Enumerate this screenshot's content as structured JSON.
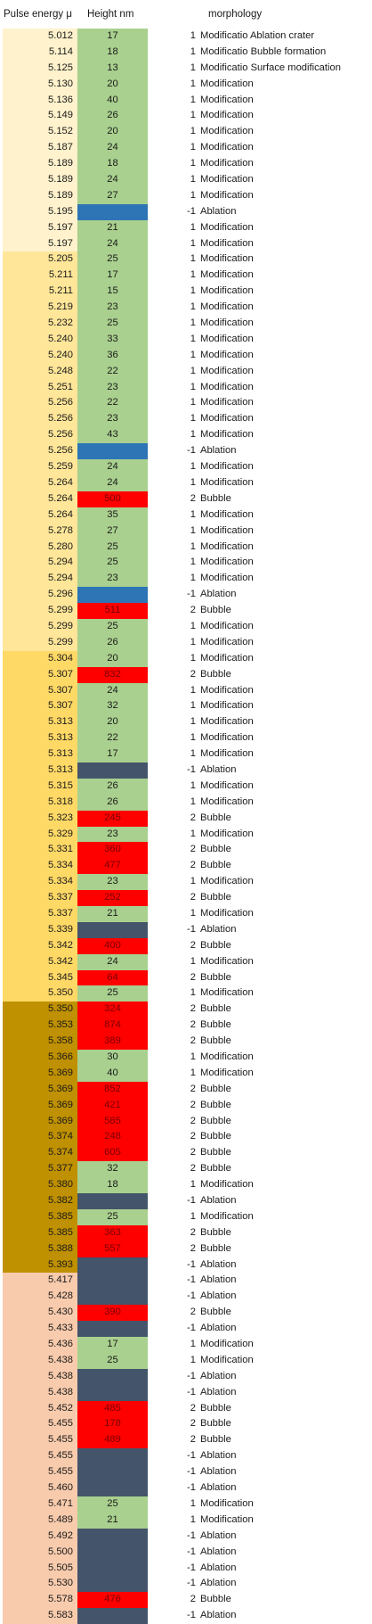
{
  "header": {
    "energy": "Pulse energy μ",
    "height": "Height nm",
    "morphology": "morphology"
  },
  "colors": {
    "energy_groups": [
      "#fff2cc",
      "#ffe699",
      "#ffd966",
      "#bf9000",
      "#f8cbad"
    ],
    "height": {
      "modification": "#a9d08e",
      "ablation_blue": "#2e75b6",
      "ablation_dark": "#44546a",
      "bubble": "#ff0000"
    }
  },
  "rows": [
    {
      "energy": "5.012",
      "height": "17",
      "code": "1",
      "morph": "Modificatio Ablation crater",
      "g": 0,
      "hc": "modification"
    },
    {
      "energy": "5.114",
      "height": "18",
      "code": "1",
      "morph": "Modificatio Bubble formation",
      "g": 0,
      "hc": "modification"
    },
    {
      "energy": "5.125",
      "height": "13",
      "code": "1",
      "morph": "Modificatio Surface modification",
      "g": 0,
      "hc": "modification"
    },
    {
      "energy": "5.130",
      "height": "20",
      "code": "1",
      "morph": "Modification",
      "g": 0,
      "hc": "modification"
    },
    {
      "energy": "5.136",
      "height": "40",
      "code": "1",
      "morph": "Modification",
      "g": 0,
      "hc": "modification"
    },
    {
      "energy": "5.149",
      "height": "26",
      "code": "1",
      "morph": "Modification",
      "g": 0,
      "hc": "modification"
    },
    {
      "energy": "5.152",
      "height": "20",
      "code": "1",
      "morph": "Modification",
      "g": 0,
      "hc": "modification"
    },
    {
      "energy": "5.187",
      "height": "24",
      "code": "1",
      "morph": "Modification",
      "g": 0,
      "hc": "modification"
    },
    {
      "energy": "5.189",
      "height": "18",
      "code": "1",
      "morph": "Modification",
      "g": 0,
      "hc": "modification"
    },
    {
      "energy": "5.189",
      "height": "24",
      "code": "1",
      "morph": "Modification",
      "g": 0,
      "hc": "modification"
    },
    {
      "energy": "5.189",
      "height": "27",
      "code": "1",
      "morph": "Modification",
      "g": 0,
      "hc": "modification"
    },
    {
      "energy": "5.195",
      "height": "",
      "code": "-1",
      "morph": "Ablation",
      "g": 0,
      "hc": "ablation_blue"
    },
    {
      "energy": "5.197",
      "height": "21",
      "code": "1",
      "morph": "Modification",
      "g": 0,
      "hc": "modification"
    },
    {
      "energy": "5.197",
      "height": "24",
      "code": "1",
      "morph": "Modification",
      "g": 0,
      "hc": "modification"
    },
    {
      "energy": "5.205",
      "height": "25",
      "code": "1",
      "morph": "Modification",
      "g": 1,
      "hc": "modification"
    },
    {
      "energy": "5.211",
      "height": "17",
      "code": "1",
      "morph": "Modification",
      "g": 1,
      "hc": "modification"
    },
    {
      "energy": "5.211",
      "height": "15",
      "code": "1",
      "morph": "Modification",
      "g": 1,
      "hc": "modification"
    },
    {
      "energy": "5.219",
      "height": "23",
      "code": "1",
      "morph": "Modification",
      "g": 1,
      "hc": "modification"
    },
    {
      "energy": "5.232",
      "height": "25",
      "code": "1",
      "morph": "Modification",
      "g": 1,
      "hc": "modification"
    },
    {
      "energy": "5.240",
      "height": "33",
      "code": "1",
      "morph": "Modification",
      "g": 1,
      "hc": "modification"
    },
    {
      "energy": "5.240",
      "height": "36",
      "code": "1",
      "morph": "Modification",
      "g": 1,
      "hc": "modification"
    },
    {
      "energy": "5.248",
      "height": "22",
      "code": "1",
      "morph": "Modification",
      "g": 1,
      "hc": "modification"
    },
    {
      "energy": "5.251",
      "height": "23",
      "code": "1",
      "morph": "Modification",
      "g": 1,
      "hc": "modification"
    },
    {
      "energy": "5.256",
      "height": "22",
      "code": "1",
      "morph": "Modification",
      "g": 1,
      "hc": "modification"
    },
    {
      "energy": "5.256",
      "height": "23",
      "code": "1",
      "morph": "Modification",
      "g": 1,
      "hc": "modification"
    },
    {
      "energy": "5.256",
      "height": "43",
      "code": "1",
      "morph": "Modification",
      "g": 1,
      "hc": "modification"
    },
    {
      "energy": "5.256",
      "height": "",
      "code": "-1",
      "morph": "Ablation",
      "g": 1,
      "hc": "ablation_blue"
    },
    {
      "energy": "5.259",
      "height": "24",
      "code": "1",
      "morph": "Modification",
      "g": 1,
      "hc": "modification"
    },
    {
      "energy": "5.264",
      "height": "24",
      "code": "1",
      "morph": "Modification",
      "g": 1,
      "hc": "modification"
    },
    {
      "energy": "5.264",
      "height": "500",
      "code": "2",
      "morph": "Bubble",
      "g": 1,
      "hc": "bubble"
    },
    {
      "energy": "5.264",
      "height": "35",
      "code": "1",
      "morph": "Modification",
      "g": 1,
      "hc": "modification"
    },
    {
      "energy": "5.278",
      "height": "27",
      "code": "1",
      "morph": "Modification",
      "g": 1,
      "hc": "modification"
    },
    {
      "energy": "5.280",
      "height": "25",
      "code": "1",
      "morph": "Modification",
      "g": 1,
      "hc": "modification"
    },
    {
      "energy": "5.294",
      "height": "25",
      "code": "1",
      "morph": "Modification",
      "g": 1,
      "hc": "modification"
    },
    {
      "energy": "5.294",
      "height": "23",
      "code": "1",
      "morph": "Modification",
      "g": 1,
      "hc": "modification"
    },
    {
      "energy": "5.296",
      "height": "",
      "code": "-1",
      "morph": "Ablation",
      "g": 1,
      "hc": "ablation_blue"
    },
    {
      "energy": "5.299",
      "height": "511",
      "code": "2",
      "morph": "Bubble",
      "g": 1,
      "hc": "bubble"
    },
    {
      "energy": "5.299",
      "height": "25",
      "code": "1",
      "morph": "Modification",
      "g": 1,
      "hc": "modification"
    },
    {
      "energy": "5.299",
      "height": "26",
      "code": "1",
      "morph": "Modification",
      "g": 1,
      "hc": "modification"
    },
    {
      "energy": "5.304",
      "height": "20",
      "code": "1",
      "morph": "Modification",
      "g": 2,
      "hc": "modification"
    },
    {
      "energy": "5.307",
      "height": "832",
      "code": "2",
      "morph": "Bubble",
      "g": 2,
      "hc": "bubble"
    },
    {
      "energy": "5.307",
      "height": "24",
      "code": "1",
      "morph": "Modification",
      "g": 2,
      "hc": "modification"
    },
    {
      "energy": "5.307",
      "height": "32",
      "code": "1",
      "morph": "Modification",
      "g": 2,
      "hc": "modification"
    },
    {
      "energy": "5.313",
      "height": "20",
      "code": "1",
      "morph": "Modification",
      "g": 2,
      "hc": "modification"
    },
    {
      "energy": "5.313",
      "height": "22",
      "code": "1",
      "morph": "Modification",
      "g": 2,
      "hc": "modification"
    },
    {
      "energy": "5.313",
      "height": "17",
      "code": "1",
      "morph": "Modification",
      "g": 2,
      "hc": "modification"
    },
    {
      "energy": "5.313",
      "height": "",
      "code": "-1",
      "morph": "Ablation",
      "g": 2,
      "hc": "ablation_dark"
    },
    {
      "energy": "5.315",
      "height": "26",
      "code": "1",
      "morph": "Modification",
      "g": 2,
      "hc": "modification"
    },
    {
      "energy": "5.318",
      "height": "26",
      "code": "1",
      "morph": "Modification",
      "g": 2,
      "hc": "modification"
    },
    {
      "energy": "5.323",
      "height": "245",
      "code": "2",
      "morph": "Bubble",
      "g": 2,
      "hc": "bubble"
    },
    {
      "energy": "5.329",
      "height": "23",
      "code": "1",
      "morph": "Modification",
      "g": 2,
      "hc": "modification"
    },
    {
      "energy": "5.331",
      "height": "360",
      "code": "2",
      "morph": "Bubble",
      "g": 2,
      "hc": "bubble"
    },
    {
      "energy": "5.334",
      "height": "477",
      "code": "2",
      "morph": "Bubble",
      "g": 2,
      "hc": "bubble"
    },
    {
      "energy": "5.334",
      "height": "23",
      "code": "1",
      "morph": "Modification",
      "g": 2,
      "hc": "modification"
    },
    {
      "energy": "5.337",
      "height": "252",
      "code": "2",
      "morph": "Bubble",
      "g": 2,
      "hc": "bubble"
    },
    {
      "energy": "5.337",
      "height": "21",
      "code": "1",
      "morph": "Modification",
      "g": 2,
      "hc": "modification"
    },
    {
      "energy": "5.339",
      "height": "",
      "code": "-1",
      "morph": "Ablation",
      "g": 2,
      "hc": "ablation_dark"
    },
    {
      "energy": "5.342",
      "height": "400",
      "code": "2",
      "morph": "Bubble",
      "g": 2,
      "hc": "bubble"
    },
    {
      "energy": "5.342",
      "height": "24",
      "code": "1",
      "morph": "Modification",
      "g": 2,
      "hc": "modification"
    },
    {
      "energy": "5.345",
      "height": "64",
      "code": "2",
      "morph": "Bubble",
      "g": 2,
      "hc": "bubble"
    },
    {
      "energy": "5.350",
      "height": "25",
      "code": "1",
      "morph": "Modification",
      "g": 2,
      "hc": "modification"
    },
    {
      "energy": "5.350",
      "height": "324",
      "code": "2",
      "morph": "Bubble",
      "g": 3,
      "hc": "bubble"
    },
    {
      "energy": "5.353",
      "height": "874",
      "code": "2",
      "morph": "Bubble",
      "g": 3,
      "hc": "bubble"
    },
    {
      "energy": "5.358",
      "height": "389",
      "code": "2",
      "morph": "Bubble",
      "g": 3,
      "hc": "bubble"
    },
    {
      "energy": "5.366",
      "height": "30",
      "code": "1",
      "morph": "Modification",
      "g": 3,
      "hc": "modification"
    },
    {
      "energy": "5.369",
      "height": "40",
      "code": "1",
      "morph": "Modification",
      "g": 3,
      "hc": "modification"
    },
    {
      "energy": "5.369",
      "height": "852",
      "code": "2",
      "morph": "Bubble",
      "g": 3,
      "hc": "bubble"
    },
    {
      "energy": "5.369",
      "height": "421",
      "code": "2",
      "morph": "Bubble",
      "g": 3,
      "hc": "bubble"
    },
    {
      "energy": "5.369",
      "height": "585",
      "code": "2",
      "morph": "Bubble",
      "g": 3,
      "hc": "bubble"
    },
    {
      "energy": "5.374",
      "height": "248",
      "code": "2",
      "morph": "Bubble",
      "g": 3,
      "hc": "bubble"
    },
    {
      "energy": "5.374",
      "height": "605",
      "code": "2",
      "morph": "Bubble",
      "g": 3,
      "hc": "bubble"
    },
    {
      "energy": "5.377",
      "height": "32",
      "code": "2",
      "morph": "Bubble",
      "g": 3,
      "hc": "modification"
    },
    {
      "energy": "5.380",
      "height": "18",
      "code": "1",
      "morph": "Modification",
      "g": 3,
      "hc": "modification"
    },
    {
      "energy": "5.382",
      "height": "",
      "code": "-1",
      "morph": "Ablation",
      "g": 3,
      "hc": "ablation_dark"
    },
    {
      "energy": "5.385",
      "height": "25",
      "code": "1",
      "morph": "Modification",
      "g": 3,
      "hc": "modification"
    },
    {
      "energy": "5.385",
      "height": "363",
      "code": "2",
      "morph": "Bubble",
      "g": 3,
      "hc": "bubble"
    },
    {
      "energy": "5.388",
      "height": "557",
      "code": "2",
      "morph": "Bubble",
      "g": 3,
      "hc": "bubble"
    },
    {
      "energy": "5.393",
      "height": "",
      "code": "-1",
      "morph": "Ablation",
      "g": 3,
      "hc": "ablation_dark"
    },
    {
      "energy": "5.417",
      "height": "",
      "code": "-1",
      "morph": "Ablation",
      "g": 4,
      "hc": "ablation_dark"
    },
    {
      "energy": "5.428",
      "height": "",
      "code": "-1",
      "morph": "Ablation",
      "g": 4,
      "hc": "ablation_dark"
    },
    {
      "energy": "5.430",
      "height": "390",
      "code": "2",
      "morph": "Bubble",
      "g": 4,
      "hc": "bubble"
    },
    {
      "energy": "5.433",
      "height": "",
      "code": "-1",
      "morph": "Ablation",
      "g": 4,
      "hc": "ablation_dark"
    },
    {
      "energy": "5.436",
      "height": "17",
      "code": "1",
      "morph": "Modification",
      "g": 4,
      "hc": "modification"
    },
    {
      "energy": "5.438",
      "height": "25",
      "code": "1",
      "morph": "Modification",
      "g": 4,
      "hc": "modification"
    },
    {
      "energy": "5.438",
      "height": "",
      "code": "-1",
      "morph": "Ablation",
      "g": 4,
      "hc": "ablation_dark"
    },
    {
      "energy": "5.438",
      "height": "",
      "code": "-1",
      "morph": "Ablation",
      "g": 4,
      "hc": "ablation_dark"
    },
    {
      "energy": "5.452",
      "height": "485",
      "code": "2",
      "morph": "Bubble",
      "g": 4,
      "hc": "bubble"
    },
    {
      "energy": "5.455",
      "height": "178",
      "code": "2",
      "morph": "Bubble",
      "g": 4,
      "hc": "bubble"
    },
    {
      "energy": "5.455",
      "height": "489",
      "code": "2",
      "morph": "Bubble",
      "g": 4,
      "hc": "bubble"
    },
    {
      "energy": "5.455",
      "height": "",
      "code": "-1",
      "morph": "Ablation",
      "g": 4,
      "hc": "ablation_dark"
    },
    {
      "energy": "5.455",
      "height": "",
      "code": "-1",
      "morph": "Ablation",
      "g": 4,
      "hc": "ablation_dark"
    },
    {
      "energy": "5.460",
      "height": "",
      "code": "-1",
      "morph": "Ablation",
      "g": 4,
      "hc": "ablation_dark"
    },
    {
      "energy": "5.471",
      "height": "25",
      "code": "1",
      "morph": "Modification",
      "g": 4,
      "hc": "modification"
    },
    {
      "energy": "5.489",
      "height": "21",
      "code": "1",
      "morph": "Modification",
      "g": 4,
      "hc": "modification"
    },
    {
      "energy": "5.492",
      "height": "",
      "code": "-1",
      "morph": "Ablation",
      "g": 4,
      "hc": "ablation_dark"
    },
    {
      "energy": "5.500",
      "height": "",
      "code": "-1",
      "morph": "Ablation",
      "g": 4,
      "hc": "ablation_dark"
    },
    {
      "energy": "5.505",
      "height": "",
      "code": "-1",
      "morph": "Ablation",
      "g": 4,
      "hc": "ablation_dark"
    },
    {
      "energy": "5.530",
      "height": "",
      "code": "-1",
      "morph": "Ablation",
      "g": 4,
      "hc": "ablation_dark"
    },
    {
      "energy": "5.578",
      "height": "476",
      "code": "2",
      "morph": "Bubble",
      "g": 4,
      "hc": "bubble"
    },
    {
      "energy": "5.583",
      "height": "",
      "code": "-1",
      "morph": "Ablation",
      "g": 4,
      "hc": "ablation_dark"
    }
  ]
}
